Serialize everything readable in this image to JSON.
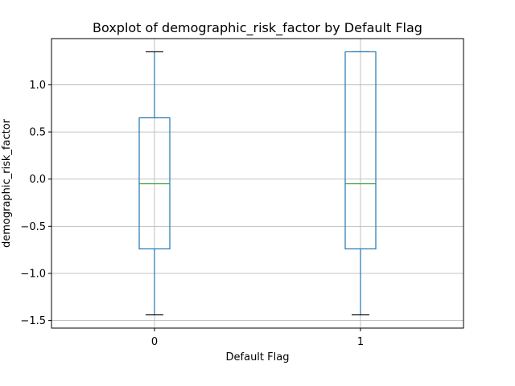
{
  "chart_data": {
    "type": "boxplot",
    "title": "Boxplot of demographic_risk_factor by Default Flag",
    "xlabel": "Default Flag",
    "ylabel": "demographic_risk_factor",
    "categories": [
      "0",
      "1"
    ],
    "boxes": [
      {
        "category": "0",
        "whisker_low": -1.44,
        "q1": -0.74,
        "median": -0.05,
        "q3": 0.65,
        "whisker_high": 1.35
      },
      {
        "category": "1",
        "whisker_low": -1.44,
        "q1": -0.74,
        "median": -0.05,
        "q3": 1.35,
        "whisker_high": 1.35
      }
    ],
    "ylim": [
      -1.58,
      1.49
    ],
    "yticks": [
      -1.5,
      -1.0,
      -0.5,
      0.0,
      0.5,
      1.0
    ],
    "ytick_labels": [
      "−1.5",
      "−1.0",
      "−0.5",
      "0.0",
      "0.5",
      "1.0"
    ],
    "grid": true,
    "colors": {
      "box": "#1f77b4",
      "median": "#2ca02c",
      "whisker_cap": "#000000",
      "grid": "#b0b0b0"
    }
  }
}
